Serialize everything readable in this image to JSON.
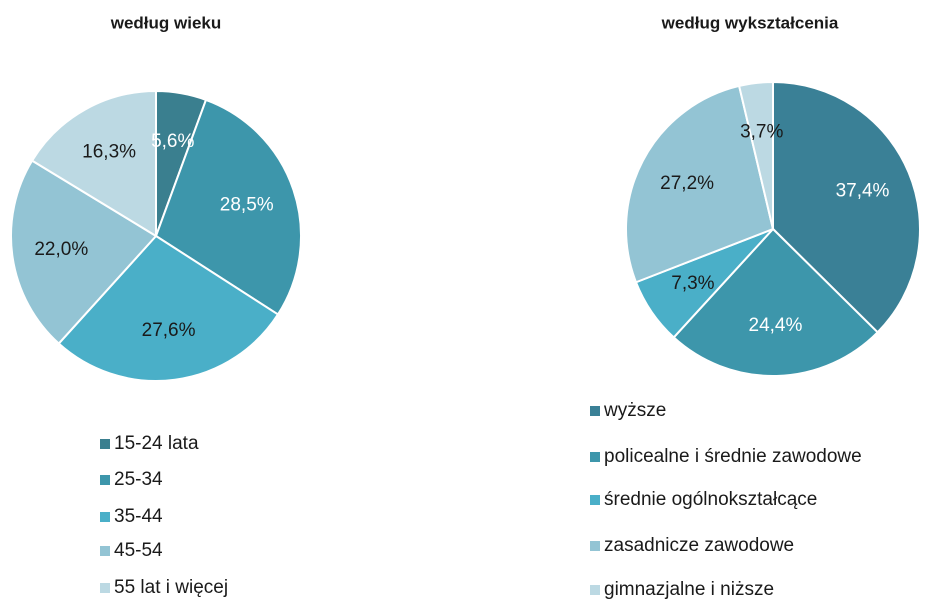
{
  "chart_data": [
    {
      "type": "pie",
      "title": "według wieku",
      "categories": [
        "15-24 lata",
        "25-34",
        "35-44",
        "45-54",
        "55 lat i więcej"
      ],
      "values": [
        5.6,
        28.5,
        27.6,
        22.0,
        16.3
      ],
      "value_labels": [
        "5,6%",
        "28,5%",
        "27,6%",
        "22,0%",
        "16,3%"
      ],
      "colors": [
        "#3a7f8f",
        "#3d96ab",
        "#4aafc8",
        "#93c4d4",
        "#bcd9e3"
      ]
    },
    {
      "type": "pie",
      "title": "według wykształcenia",
      "categories": [
        "wyższe",
        "policealne i średnie zawodowe",
        "średnie ogólnokształcące",
        "zasadnicze zawodowe",
        "gimnazjalne i niższe"
      ],
      "values": [
        37.4,
        24.4,
        7.3,
        27.2,
        3.7
      ],
      "value_labels": [
        "37,4%",
        "24,4%",
        "7,3%",
        "27,2%",
        "3,7%"
      ],
      "colors": [
        "#3a8096",
        "#3d96ab",
        "#4aafc8",
        "#93c4d4",
        "#bcd9e3"
      ]
    }
  ]
}
